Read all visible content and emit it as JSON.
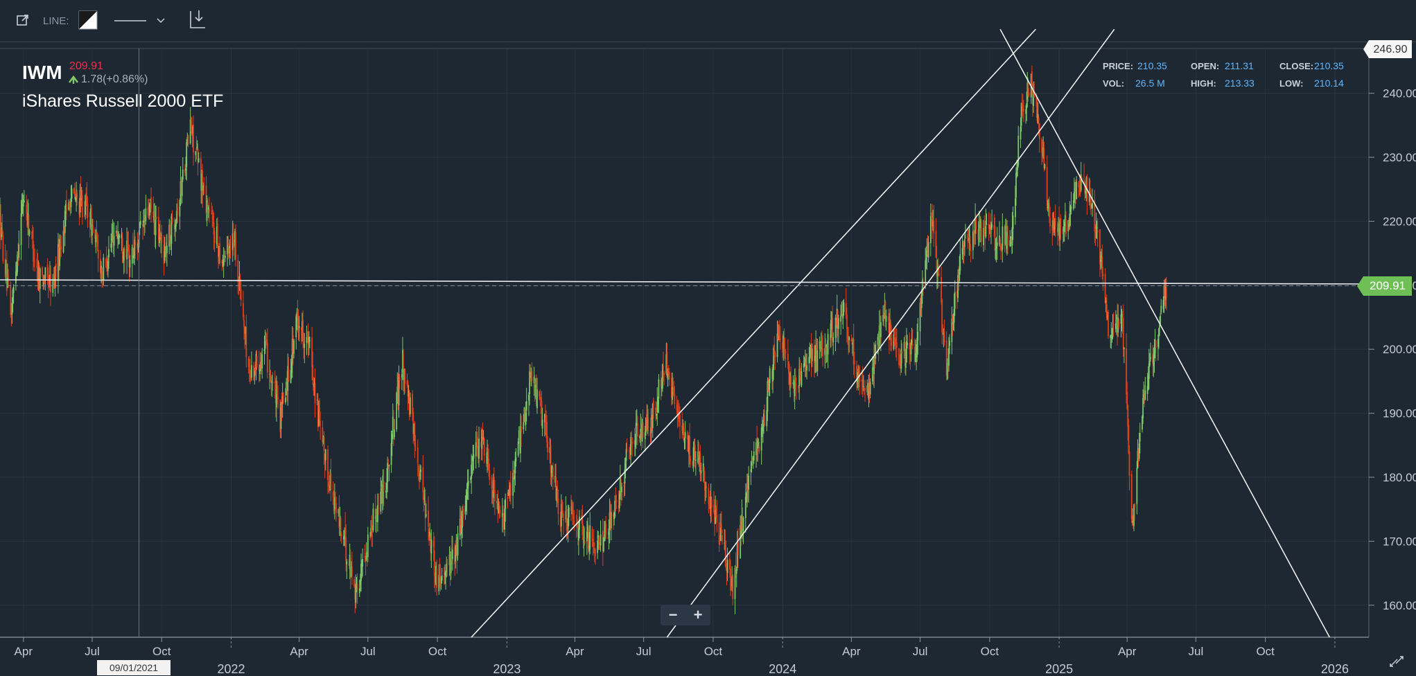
{
  "toolbar": {
    "line_label": "LINE:",
    "icons": [
      "external-link-icon",
      "color-swatch-icon",
      "line-style-icon",
      "chevron-down-icon",
      "download-icon"
    ]
  },
  "header": {
    "symbol": "IWM",
    "last_price": "209.91",
    "change": "1.78(+0.86%)",
    "name": "iShares Russell 2000 ETF"
  },
  "ohlc": {
    "price_label": "PRICE:",
    "price": "210.35",
    "open_label": "OPEN:",
    "open": "211.31",
    "close_label": "CLOSE:",
    "close": "210.35",
    "vol_label": "VOL:",
    "vol": "26.5 M",
    "high_label": "HIGH:",
    "high": "213.33",
    "low_label": "LOW:",
    "low": "210.14"
  },
  "crosshair_date": "09/01/2021",
  "zoom": {
    "minus": "−",
    "plus": "+"
  },
  "colors": {
    "background": "#1d2833",
    "up": "#7fc96b",
    "down": "#e0401a",
    "accent_price": "#e8334f",
    "accent_change": "#7fc96b",
    "last_tag": "#6fbf57",
    "ohlc_value": "#5fb7ff"
  },
  "chart_data": {
    "type": "candlestick",
    "title": "IWM",
    "subtitle": "iShares Russell 2000 ETF",
    "xlabel": "",
    "ylabel": "",
    "ylim": [
      155,
      247
    ],
    "xlim": [
      "2021-03-01",
      "2026-02-15"
    ],
    "yticks": [
      "160.00",
      "170.00",
      "180.00",
      "190.00",
      "200.00",
      "210.00",
      "220.00",
      "230.00",
      "240.00"
    ],
    "xticks_minor": [
      {
        "label": "Apr",
        "date": "2021-04-01"
      },
      {
        "label": "Jul",
        "date": "2021-07-01"
      },
      {
        "label": "Oct",
        "date": "2021-10-01"
      },
      {
        "label": "Apr",
        "date": "2022-04-01"
      },
      {
        "label": "Jul",
        "date": "2022-07-01"
      },
      {
        "label": "Oct",
        "date": "2022-10-01"
      },
      {
        "label": "Apr",
        "date": "2023-04-01"
      },
      {
        "label": "Jul",
        "date": "2023-07-01"
      },
      {
        "label": "Oct",
        "date": "2023-10-01"
      },
      {
        "label": "Apr",
        "date": "2024-04-01"
      },
      {
        "label": "Jul",
        "date": "2024-07-01"
      },
      {
        "label": "Oct",
        "date": "2024-10-01"
      },
      {
        "label": "Apr",
        "date": "2025-04-01"
      },
      {
        "label": "Jul",
        "date": "2025-07-01"
      },
      {
        "label": "Oct",
        "date": "2025-10-01"
      }
    ],
    "xticks_major": [
      {
        "label": "2022",
        "date": "2022-01-01"
      },
      {
        "label": "2023",
        "date": "2023-01-01"
      },
      {
        "label": "2024",
        "date": "2024-01-01"
      },
      {
        "label": "2025",
        "date": "2025-01-01"
      },
      {
        "label": "2026",
        "date": "2026-01-01"
      }
    ],
    "price_tags": [
      {
        "label": "246.90",
        "value": 246.9
      },
      {
        "label": "209.91",
        "value": 209.91
      }
    ],
    "last_price": 209.91,
    "horizontal_line": 210.2,
    "crosshair_x": "2021-09-01",
    "trendlines": [
      {
        "from": [
          "2022-11-15",
          155
        ],
        "to": [
          "2024-12-01",
          250
        ]
      },
      {
        "from": [
          "2023-08-01",
          155
        ],
        "to": [
          "2025-03-15",
          250
        ]
      },
      {
        "from": [
          "2024-10-15",
          250
        ],
        "to": [
          "2025-12-25",
          155
        ]
      }
    ],
    "series": [
      {
        "anchors": [
          [
            "2021-03-01",
            220
          ],
          [
            "2021-03-15",
            205
          ],
          [
            "2021-04-01",
            224
          ],
          [
            "2021-04-20",
            212
          ],
          [
            "2021-05-10",
            210
          ],
          [
            "2021-06-01",
            224
          ],
          [
            "2021-06-25",
            222
          ],
          [
            "2021-07-15",
            212
          ],
          [
            "2021-08-01",
            219
          ],
          [
            "2021-08-20",
            214
          ],
          [
            "2021-09-15",
            222
          ],
          [
            "2021-10-05",
            215
          ],
          [
            "2021-10-25",
            224
          ],
          [
            "2021-11-08",
            235
          ],
          [
            "2021-11-25",
            225
          ],
          [
            "2021-12-20",
            214
          ],
          [
            "2022-01-05",
            218
          ],
          [
            "2022-01-25",
            196
          ],
          [
            "2022-02-15",
            200
          ],
          [
            "2022-03-07",
            189
          ],
          [
            "2022-03-30",
            205
          ],
          [
            "2022-04-15",
            200
          ],
          [
            "2022-05-01",
            185
          ],
          [
            "2022-05-20",
            175
          ],
          [
            "2022-06-16",
            162
          ],
          [
            "2022-07-05",
            172
          ],
          [
            "2022-07-25",
            180
          ],
          [
            "2022-08-16",
            198
          ],
          [
            "2022-09-05",
            183
          ],
          [
            "2022-09-30",
            164
          ],
          [
            "2022-10-25",
            168
          ],
          [
            "2022-11-15",
            182
          ],
          [
            "2022-12-01",
            186
          ],
          [
            "2022-12-25",
            172
          ],
          [
            "2023-01-15",
            184
          ],
          [
            "2023-02-02",
            196
          ],
          [
            "2023-02-20",
            188
          ],
          [
            "2023-03-13",
            174
          ],
          [
            "2023-04-10",
            172
          ],
          [
            "2023-05-04",
            169
          ],
          [
            "2023-05-25",
            175
          ],
          [
            "2023-06-15",
            186
          ],
          [
            "2023-07-10",
            188
          ],
          [
            "2023-07-31",
            198
          ],
          [
            "2023-08-20",
            186
          ],
          [
            "2023-09-15",
            182
          ],
          [
            "2023-10-05",
            173
          ],
          [
            "2023-10-27",
            163
          ],
          [
            "2023-11-15",
            178
          ],
          [
            "2023-12-05",
            188
          ],
          [
            "2023-12-27",
            204
          ],
          [
            "2024-01-15",
            193
          ],
          [
            "2024-02-05",
            198
          ],
          [
            "2024-02-25",
            200
          ],
          [
            "2024-03-20",
            207
          ],
          [
            "2024-04-18",
            192
          ],
          [
            "2024-05-15",
            205
          ],
          [
            "2024-06-05",
            199
          ],
          [
            "2024-06-25",
            200
          ],
          [
            "2024-07-16",
            222
          ],
          [
            "2024-08-05",
            197
          ],
          [
            "2024-08-25",
            215
          ],
          [
            "2024-09-15",
            219
          ],
          [
            "2024-10-10",
            217
          ],
          [
            "2024-10-31",
            218
          ],
          [
            "2024-11-12",
            238
          ],
          [
            "2024-11-25",
            241
          ],
          [
            "2024-12-10",
            232
          ],
          [
            "2024-12-20",
            219
          ],
          [
            "2025-01-10",
            219
          ],
          [
            "2025-01-25",
            226
          ],
          [
            "2025-02-05",
            226
          ],
          [
            "2025-02-20",
            219
          ],
          [
            "2025-03-10",
            201
          ],
          [
            "2025-03-25",
            206
          ],
          [
            "2025-04-08",
            172
          ],
          [
            "2025-04-20",
            190
          ],
          [
            "2025-05-05",
            199
          ],
          [
            "2025-05-15",
            205
          ],
          [
            "2025-05-23",
            209.91
          ]
        ]
      }
    ]
  }
}
